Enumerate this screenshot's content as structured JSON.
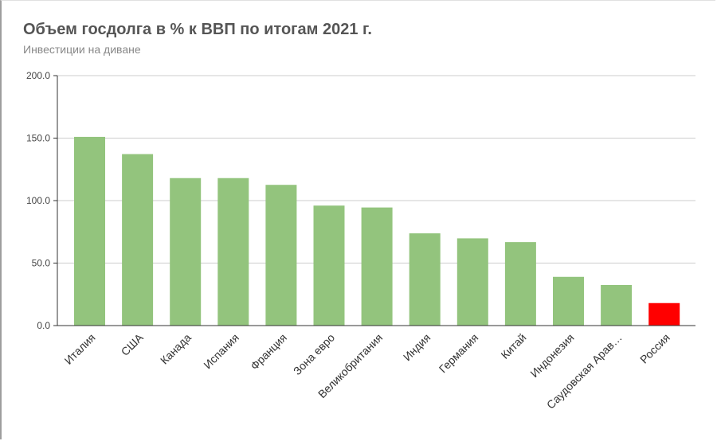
{
  "chart_data": {
    "type": "bar",
    "title": "Объем госдолга в % к ВВП по итогам 2021 г.",
    "subtitle": "Инвестиции на диване",
    "xlabel": "",
    "ylabel": "",
    "ylim": [
      0,
      200
    ],
    "yticks": [
      "0.0",
      "50.0",
      "100.0",
      "150.0",
      "200.0"
    ],
    "grid": true,
    "legend": "none",
    "categories": [
      "Италия",
      "США",
      "Канада",
      "Испания",
      "Франция",
      "Зона евро",
      "Великобритания",
      "Индия",
      "Германия",
      "Китай",
      "Индонезия",
      "Саудовская Арав…",
      "Россия"
    ],
    "values": [
      151,
      137.2,
      118,
      118,
      112.6,
      96,
      94.5,
      73.8,
      69.8,
      66.8,
      39,
      32.5,
      18
    ],
    "colors": {
      "default": "#93c47d",
      "highlight": "#ff0000",
      "highlight_category": "Россия"
    }
  }
}
